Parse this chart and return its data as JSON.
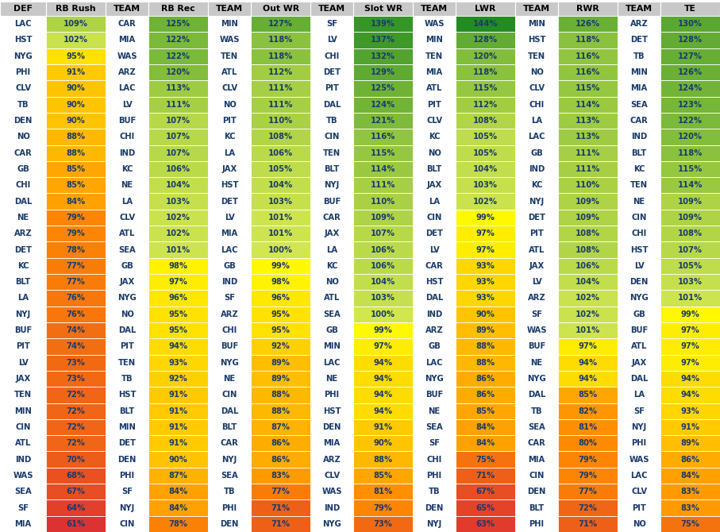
{
  "headers": [
    "DEF",
    "RB Rush",
    "TEAM",
    "RB Rec",
    "TEAM",
    "Out WR",
    "TEAM",
    "Slot WR",
    "TEAM",
    "LWR",
    "TEAM",
    "RWR",
    "TEAM",
    "TE"
  ],
  "rows": [
    [
      "LAC",
      109,
      "CAR",
      125,
      "MIN",
      127,
      "SF",
      139,
      "WAS",
      144,
      "MIN",
      126,
      "ARZ",
      130
    ],
    [
      "HST",
      102,
      "MIA",
      122,
      "WAS",
      118,
      "LV",
      137,
      "MIN",
      128,
      "HST",
      118,
      "DET",
      128
    ],
    [
      "NYG",
      95,
      "WAS",
      122,
      "TEN",
      118,
      "CHI",
      132,
      "TEN",
      120,
      "TEN",
      116,
      "TB",
      127
    ],
    [
      "PHI",
      91,
      "ARZ",
      120,
      "ATL",
      112,
      "DET",
      129,
      "MIA",
      118,
      "NO",
      116,
      "MIN",
      126
    ],
    [
      "CLV",
      90,
      "LAC",
      113,
      "CLV",
      111,
      "PIT",
      125,
      "ATL",
      115,
      "CLV",
      115,
      "MIA",
      124
    ],
    [
      "TB",
      90,
      "LV",
      111,
      "NO",
      111,
      "DAL",
      124,
      "PIT",
      112,
      "CHI",
      114,
      "SEA",
      123
    ],
    [
      "DEN",
      90,
      "BUF",
      107,
      "PIT",
      110,
      "TB",
      121,
      "CLV",
      108,
      "LA",
      113,
      "CAR",
      122
    ],
    [
      "NO",
      88,
      "CHI",
      107,
      "KC",
      108,
      "CIN",
      116,
      "KC",
      105,
      "LAC",
      113,
      "IND",
      120
    ],
    [
      "CAR",
      88,
      "IND",
      107,
      "LA",
      106,
      "TEN",
      115,
      "NO",
      105,
      "GB",
      111,
      "BLT",
      118
    ],
    [
      "GB",
      85,
      "KC",
      106,
      "JAX",
      105,
      "BLT",
      114,
      "BLT",
      104,
      "IND",
      111,
      "KC",
      115
    ],
    [
      "CHI",
      85,
      "NE",
      104,
      "HST",
      104,
      "NYJ",
      111,
      "JAX",
      103,
      "KC",
      110,
      "TEN",
      114
    ],
    [
      "DAL",
      84,
      "LA",
      103,
      "DET",
      103,
      "BUF",
      110,
      "LA",
      102,
      "NYJ",
      109,
      "NE",
      109
    ],
    [
      "NE",
      79,
      "CLV",
      102,
      "LV",
      101,
      "CAR",
      109,
      "CIN",
      99,
      "DET",
      109,
      "CIN",
      109
    ],
    [
      "ARZ",
      79,
      "ATL",
      102,
      "MIA",
      101,
      "JAX",
      107,
      "DET",
      97,
      "PIT",
      108,
      "CHI",
      108
    ],
    [
      "DET",
      78,
      "SEA",
      101,
      "LAC",
      100,
      "LA",
      106,
      "LV",
      97,
      "ATL",
      108,
      "HST",
      107
    ],
    [
      "KC",
      77,
      "GB",
      98,
      "GB",
      99,
      "KC",
      106,
      "CAR",
      93,
      "JAX",
      106,
      "LV",
      105
    ],
    [
      "BLT",
      77,
      "JAX",
      97,
      "IND",
      98,
      "NO",
      104,
      "HST",
      93,
      "LV",
      104,
      "DEN",
      103
    ],
    [
      "LA",
      76,
      "NYG",
      96,
      "SF",
      96,
      "ATL",
      103,
      "DAL",
      93,
      "ARZ",
      102,
      "NYG",
      101
    ],
    [
      "NYJ",
      76,
      "NO",
      95,
      "ARZ",
      95,
      "SEA",
      100,
      "IND",
      90,
      "SF",
      102,
      "GB",
      99
    ],
    [
      "BUF",
      74,
      "DAL",
      95,
      "CHI",
      95,
      "GB",
      99,
      "ARZ",
      89,
      "WAS",
      101,
      "BUF",
      97
    ],
    [
      "PIT",
      74,
      "PIT",
      94,
      "BUF",
      92,
      "MIN",
      97,
      "GB",
      88,
      "BUF",
      97,
      "ATL",
      97
    ],
    [
      "LV",
      73,
      "TEN",
      93,
      "NYG",
      89,
      "LAC",
      94,
      "LAC",
      88,
      "NE",
      94,
      "JAX",
      97
    ],
    [
      "JAX",
      73,
      "TB",
      92,
      "NE",
      89,
      "NE",
      94,
      "NYG",
      86,
      "NYG",
      94,
      "DAL",
      94
    ],
    [
      "TEN",
      72,
      "HST",
      91,
      "CIN",
      88,
      "PHI",
      94,
      "BUF",
      86,
      "DAL",
      85,
      "LA",
      94
    ],
    [
      "MIN",
      72,
      "BLT",
      91,
      "DAL",
      88,
      "HST",
      94,
      "NE",
      85,
      "TB",
      82,
      "SF",
      93
    ],
    [
      "CIN",
      72,
      "MIN",
      91,
      "BLT",
      87,
      "DEN",
      91,
      "SEA",
      84,
      "SEA",
      81,
      "NYJ",
      91
    ],
    [
      "ATL",
      72,
      "DET",
      91,
      "CAR",
      86,
      "MIA",
      90,
      "SF",
      84,
      "CAR",
      80,
      "PHI",
      89
    ],
    [
      "IND",
      70,
      "DEN",
      90,
      "NYJ",
      86,
      "ARZ",
      88,
      "CHI",
      75,
      "MIA",
      79,
      "WAS",
      86
    ],
    [
      "WAS",
      68,
      "PHI",
      87,
      "SEA",
      83,
      "CLV",
      85,
      "PHI",
      71,
      "CIN",
      79,
      "LAC",
      84
    ],
    [
      "SEA",
      67,
      "SF",
      84,
      "TB",
      77,
      "WAS",
      81,
      "TB",
      67,
      "DEN",
      77,
      "CLV",
      83
    ],
    [
      "SF",
      64,
      "NYJ",
      84,
      "PHI",
      71,
      "IND",
      79,
      "DEN",
      65,
      "BLT",
      72,
      "PIT",
      83
    ],
    [
      "MIA",
      61,
      "CIN",
      78,
      "DEN",
      71,
      "NYG",
      73,
      "NYJ",
      63,
      "PHI",
      71,
      "NO",
      75
    ]
  ],
  "header_bg": "#c8c8c8",
  "text_color": "#1a3a6b",
  "header_text_color": "#000000",
  "col_props": [
    0.7,
    0.9,
    0.65,
    0.9,
    0.65,
    0.9,
    0.65,
    0.9,
    0.65,
    0.9,
    0.65,
    0.9,
    0.65,
    0.9
  ],
  "val_min": 61,
  "val_mid": 100,
  "val_max": 144,
  "color_green_dark": [
    34,
    139,
    34
  ],
  "color_green_light": [
    144,
    238,
    144
  ],
  "color_yellow": [
    255,
    255,
    0
  ],
  "color_orange": [
    255,
    165,
    0
  ],
  "color_red": [
    255,
    50,
    50
  ]
}
